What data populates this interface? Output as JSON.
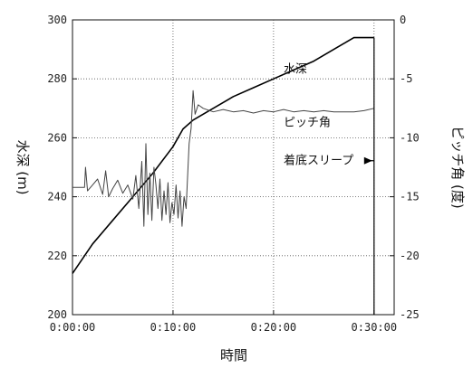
{
  "chart_data": {
    "type": "line",
    "title": "",
    "xlabel": "時間",
    "ylabel_left": "水深 (m)",
    "ylabel_right": "ピッチ角 (度)",
    "x_unit": "minutes",
    "xlim": [
      0,
      32
    ],
    "ylim_left": [
      200,
      300
    ],
    "ylim_right": [
      -25,
      0
    ],
    "x_ticks": [
      "0:00:00",
      "0:10:00",
      "0:20:00",
      "0:30:00"
    ],
    "x_tick_values": [
      0,
      10,
      20,
      30
    ],
    "y_left_ticks": [
      200,
      220,
      240,
      260,
      280,
      300
    ],
    "y_right_ticks": [
      0,
      -5,
      -10,
      -15,
      -20,
      -25
    ],
    "grid": true,
    "series": [
      {
        "name": "水深",
        "axis": "left",
        "x": [
          0,
          2,
          4,
          6,
          8,
          10,
          11,
          12,
          14,
          16,
          18,
          20,
          22,
          24,
          26,
          27,
          28,
          30
        ],
        "y": [
          214,
          224,
          232,
          240,
          248,
          257,
          263,
          266,
          270,
          274,
          277,
          280,
          283,
          286,
          290,
          292,
          294,
          294
        ]
      },
      {
        "name": "ピッチ角",
        "axis": "right",
        "x": [
          0,
          1.2,
          1.3,
          1.5,
          2,
          2.5,
          3,
          3.3,
          3.6,
          4,
          4.5,
          5,
          5.5,
          6,
          6.3,
          6.6,
          6.9,
          7.1,
          7.3,
          7.5,
          7.7,
          7.9,
          8.1,
          8.3,
          8.5,
          8.7,
          8.9,
          9.1,
          9.3,
          9.5,
          9.7,
          9.9,
          10.1,
          10.3,
          10.5,
          10.7,
          10.9,
          11.1,
          11.3,
          11.6,
          11.8,
          12.0,
          12.2,
          12.5,
          13,
          14,
          15,
          16,
          17,
          18,
          19,
          20,
          21,
          22,
          23,
          24,
          25,
          26,
          27,
          28,
          29,
          30
        ],
        "y": [
          -14.2,
          -14.2,
          -12.5,
          -14.5,
          -14.0,
          -13.5,
          -14.8,
          -12.8,
          -15.0,
          -14.3,
          -13.6,
          -14.7,
          -14.0,
          -15.2,
          -13.2,
          -16.0,
          -12.0,
          -17.5,
          -10.5,
          -16.5,
          -13.0,
          -17.0,
          -12.5,
          -14.0,
          -16.0,
          -13.5,
          -17.0,
          -14.5,
          -16.5,
          -13.8,
          -17.2,
          -15.5,
          -16.5,
          -14.0,
          -16.8,
          -14.5,
          -17.5,
          -15.0,
          -16.0,
          -10.5,
          -9.2,
          -6.0,
          -8.0,
          -7.2,
          -7.5,
          -7.8,
          -7.6,
          -7.8,
          -7.7,
          -7.9,
          -7.7,
          -7.8,
          -7.6,
          -7.8,
          -7.7,
          -7.8,
          -7.7,
          -7.8,
          -7.8,
          -7.8,
          -7.7,
          -7.5
        ]
      }
    ],
    "annotations": [
      {
        "text": "水深",
        "x": 21,
        "y_left": 282
      },
      {
        "text": "ピッチ角",
        "x": 21,
        "y_left": 264
      },
      {
        "text": "着底スリープ",
        "x": 21,
        "y_left": 251,
        "arrow_to_x": 30
      }
    ]
  }
}
